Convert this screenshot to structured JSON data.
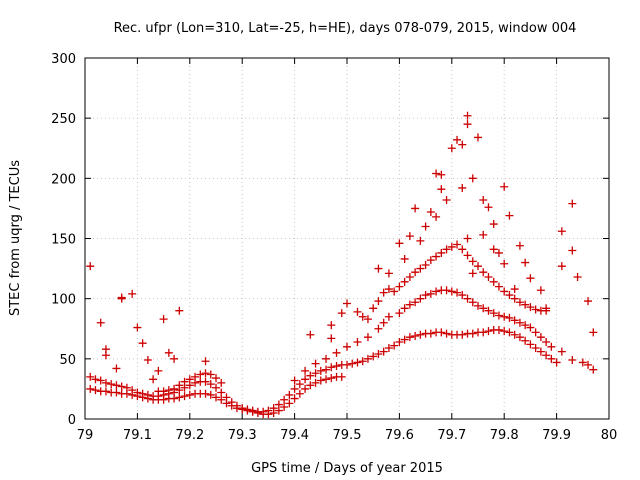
{
  "chart_data": {
    "type": "scatter",
    "title": "Rec. ufpr (Lon=310, Lat=-25, h=HE), days 078-079, 2015, window 004",
    "xlabel": "GPS time / Days of year 2015",
    "ylabel": "STEC from uqrg / TECUs",
    "xlim": [
      79,
      80
    ],
    "ylim": [
      0,
      300
    ],
    "xticks": [
      "79",
      "79.1",
      "79.2",
      "79.3",
      "79.4",
      "79.5",
      "79.6",
      "79.7",
      "79.8",
      "79.9",
      "80"
    ],
    "yticks": [
      "0",
      "50",
      "100",
      "150",
      "200",
      "250",
      "300"
    ],
    "grid": true,
    "marker": "+",
    "color": "#cc0000",
    "series": [
      {
        "points": [
          [
            79.01,
            127
          ],
          [
            79.03,
            80
          ],
          [
            79.04,
            58
          ],
          [
            79.04,
            53
          ],
          [
            79.06,
            42
          ],
          [
            79.07,
            100
          ],
          [
            79.07,
            101
          ],
          [
            79.09,
            104
          ],
          [
            79.1,
            76
          ],
          [
            79.11,
            63
          ],
          [
            79.12,
            49
          ],
          [
            79.15,
            83
          ],
          [
            79.16,
            55
          ],
          [
            79.17,
            50
          ],
          [
            79.18,
            90
          ],
          [
            79.14,
            40
          ],
          [
            79.13,
            33
          ],
          [
            79.23,
            48
          ],
          [
            79.01,
            35
          ],
          [
            79.02,
            33
          ],
          [
            79.03,
            32
          ],
          [
            79.04,
            30
          ],
          [
            79.05,
            29
          ],
          [
            79.06,
            28
          ],
          [
            79.07,
            27
          ],
          [
            79.08,
            26
          ],
          [
            79.09,
            24
          ],
          [
            79.1,
            22
          ],
          [
            79.11,
            21
          ],
          [
            79.12,
            20
          ],
          [
            79.13,
            19
          ],
          [
            79.14,
            19
          ],
          [
            79.15,
            20
          ],
          [
            79.16,
            21
          ],
          [
            79.17,
            22
          ],
          [
            79.18,
            24
          ],
          [
            79.19,
            26
          ],
          [
            79.2,
            28
          ],
          [
            79.21,
            30
          ],
          [
            79.22,
            31
          ],
          [
            79.23,
            31
          ],
          [
            79.24,
            29
          ],
          [
            79.25,
            26
          ],
          [
            79.26,
            22
          ],
          [
            79.27,
            18
          ],
          [
            79.28,
            14
          ],
          [
            79.29,
            11
          ],
          [
            79.3,
            9
          ],
          [
            79.31,
            8
          ],
          [
            79.32,
            7
          ],
          [
            79.33,
            6
          ],
          [
            79.34,
            6
          ],
          [
            79.35,
            7
          ],
          [
            79.36,
            9
          ],
          [
            79.37,
            12
          ],
          [
            79.38,
            16
          ],
          [
            79.39,
            20
          ],
          [
            79.4,
            25
          ],
          [
            79.41,
            29
          ],
          [
            79.42,
            33
          ],
          [
            79.43,
            36
          ],
          [
            79.44,
            38
          ],
          [
            79.45,
            40
          ],
          [
            79.46,
            41
          ],
          [
            79.47,
            43
          ],
          [
            79.48,
            44
          ],
          [
            79.49,
            45
          ],
          [
            79.5,
            45
          ],
          [
            79.51,
            46
          ],
          [
            79.52,
            47
          ],
          [
            79.53,
            48
          ],
          [
            79.54,
            50
          ],
          [
            79.55,
            52
          ],
          [
            79.56,
            54
          ],
          [
            79.57,
            56
          ],
          [
            79.58,
            59
          ],
          [
            79.59,
            61
          ],
          [
            79.6,
            64
          ],
          [
            79.61,
            66
          ],
          [
            79.62,
            68
          ],
          [
            79.63,
            69
          ],
          [
            79.64,
            70
          ],
          [
            79.65,
            71
          ],
          [
            79.66,
            71
          ],
          [
            79.67,
            72
          ],
          [
            79.68,
            72
          ],
          [
            79.69,
            71
          ],
          [
            79.7,
            70
          ],
          [
            79.71,
            70
          ],
          [
            79.72,
            70
          ],
          [
            79.73,
            71
          ],
          [
            79.74,
            71
          ],
          [
            79.75,
            72
          ],
          [
            79.76,
            72
          ],
          [
            79.77,
            73
          ],
          [
            79.78,
            74
          ],
          [
            79.79,
            74
          ],
          [
            79.8,
            73
          ],
          [
            79.81,
            72
          ],
          [
            79.82,
            70
          ],
          [
            79.83,
            68
          ],
          [
            79.84,
            65
          ],
          [
            79.85,
            62
          ],
          [
            79.86,
            59
          ],
          [
            79.87,
            56
          ],
          [
            79.88,
            53
          ],
          [
            79.89,
            50
          ],
          [
            79.9,
            47
          ],
          [
            79.01,
            25
          ],
          [
            79.02,
            24
          ],
          [
            79.03,
            23
          ],
          [
            79.04,
            23
          ],
          [
            79.05,
            22
          ],
          [
            79.06,
            22
          ],
          [
            79.07,
            21
          ],
          [
            79.08,
            21
          ],
          [
            79.09,
            20
          ],
          [
            79.1,
            19
          ],
          [
            79.11,
            18
          ],
          [
            79.12,
            17
          ],
          [
            79.13,
            16
          ],
          [
            79.14,
            16
          ],
          [
            79.15,
            16
          ],
          [
            79.16,
            17
          ],
          [
            79.17,
            17
          ],
          [
            79.18,
            18
          ],
          [
            79.19,
            19
          ],
          [
            79.2,
            20
          ],
          [
            79.21,
            21
          ],
          [
            79.22,
            21
          ],
          [
            79.23,
            21
          ],
          [
            79.24,
            20
          ],
          [
            79.25,
            18
          ],
          [
            79.26,
            16
          ],
          [
            79.27,
            13
          ],
          [
            79.28,
            11
          ],
          [
            79.29,
            9
          ],
          [
            79.3,
            8
          ],
          [
            79.31,
            7
          ],
          [
            79.32,
            6
          ],
          [
            79.33,
            5
          ],
          [
            79.34,
            4
          ],
          [
            79.35,
            4
          ],
          [
            79.36,
            5
          ],
          [
            79.37,
            7
          ],
          [
            79.38,
            10
          ],
          [
            79.39,
            13
          ],
          [
            79.4,
            17
          ],
          [
            79.41,
            21
          ],
          [
            79.42,
            25
          ],
          [
            79.43,
            28
          ],
          [
            79.44,
            30
          ],
          [
            79.45,
            32
          ],
          [
            79.46,
            33
          ],
          [
            79.47,
            34
          ],
          [
            79.48,
            35
          ],
          [
            79.49,
            35
          ],
          [
            79.22,
            37
          ],
          [
            79.23,
            38
          ],
          [
            79.24,
            37
          ],
          [
            79.25,
            34
          ],
          [
            79.26,
            30
          ],
          [
            79.21,
            35
          ],
          [
            79.2,
            33
          ],
          [
            79.19,
            31
          ],
          [
            79.18,
            28
          ],
          [
            79.17,
            25
          ],
          [
            79.16,
            24
          ],
          [
            79.15,
            23
          ],
          [
            79.14,
            23
          ],
          [
            79.4,
            32
          ],
          [
            79.42,
            40
          ],
          [
            79.44,
            46
          ],
          [
            79.46,
            50
          ],
          [
            79.48,
            55
          ],
          [
            79.5,
            60
          ],
          [
            79.52,
            64
          ],
          [
            79.54,
            68
          ],
          [
            79.56,
            75
          ],
          [
            79.57,
            80
          ],
          [
            79.58,
            85
          ],
          [
            79.6,
            88
          ],
          [
            79.61,
            92
          ],
          [
            79.62,
            95
          ],
          [
            79.63,
            97
          ],
          [
            79.64,
            100
          ],
          [
            79.65,
            103
          ],
          [
            79.66,
            104
          ],
          [
            79.67,
            106
          ],
          [
            79.68,
            107
          ],
          [
            79.69,
            107
          ],
          [
            79.7,
            106
          ],
          [
            79.71,
            105
          ],
          [
            79.72,
            103
          ],
          [
            79.73,
            100
          ],
          [
            79.74,
            97
          ],
          [
            79.75,
            94
          ],
          [
            79.76,
            92
          ],
          [
            79.77,
            90
          ],
          [
            79.78,
            88
          ],
          [
            79.79,
            86
          ],
          [
            79.8,
            85
          ],
          [
            79.81,
            84
          ],
          [
            79.82,
            82
          ],
          [
            79.83,
            80
          ],
          [
            79.84,
            78
          ],
          [
            79.85,
            76
          ],
          [
            79.86,
            72
          ],
          [
            79.87,
            68
          ],
          [
            79.88,
            64
          ],
          [
            79.89,
            60
          ],
          [
            79.47,
            78
          ],
          [
            79.49,
            88
          ],
          [
            79.5,
            96
          ],
          [
            79.52,
            89
          ],
          [
            79.53,
            85
          ],
          [
            79.54,
            83
          ],
          [
            79.55,
            92
          ],
          [
            79.56,
            98
          ],
          [
            79.57,
            105
          ],
          [
            79.58,
            108
          ],
          [
            79.59,
            106
          ],
          [
            79.6,
            110
          ],
          [
            79.61,
            114
          ],
          [
            79.62,
            118
          ],
          [
            79.63,
            122
          ],
          [
            79.64,
            125
          ],
          [
            79.65,
            128
          ],
          [
            79.66,
            132
          ],
          [
            79.67,
            135
          ],
          [
            79.68,
            138
          ],
          [
            79.69,
            141
          ],
          [
            79.7,
            143
          ],
          [
            79.71,
            145
          ],
          [
            79.72,
            141
          ],
          [
            79.73,
            136
          ],
          [
            79.74,
            131
          ],
          [
            79.75,
            127
          ],
          [
            79.76,
            122
          ],
          [
            79.77,
            118
          ],
          [
            79.78,
            114
          ],
          [
            79.79,
            110
          ],
          [
            79.8,
            106
          ],
          [
            79.81,
            103
          ],
          [
            79.82,
            100
          ],
          [
            79.83,
            97
          ],
          [
            79.84,
            95
          ],
          [
            79.85,
            93
          ],
          [
            79.86,
            91
          ],
          [
            79.87,
            90
          ],
          [
            79.88,
            90
          ],
          [
            79.43,
            70
          ],
          [
            79.47,
            67
          ],
          [
            79.56,
            125
          ],
          [
            79.58,
            121
          ],
          [
            79.6,
            146
          ],
          [
            79.61,
            133
          ],
          [
            79.62,
            152
          ],
          [
            79.63,
            175
          ],
          [
            79.64,
            148
          ],
          [
            79.65,
            160
          ],
          [
            79.66,
            172
          ],
          [
            79.67,
            168
          ],
          [
            79.67,
            204
          ],
          [
            79.68,
            203
          ],
          [
            79.68,
            191
          ],
          [
            79.69,
            182
          ],
          [
            79.7,
            225
          ],
          [
            79.71,
            232
          ],
          [
            79.72,
            228
          ],
          [
            79.73,
            245
          ],
          [
            79.73,
            252
          ],
          [
            79.74,
            200
          ],
          [
            79.75,
            234
          ],
          [
            79.76,
            182
          ],
          [
            79.77,
            176
          ],
          [
            79.78,
            162
          ],
          [
            79.79,
            138
          ],
          [
            79.8,
            193
          ],
          [
            79.81,
            169
          ],
          [
            79.83,
            144
          ],
          [
            79.84,
            130
          ],
          [
            79.85,
            117
          ],
          [
            79.87,
            107
          ],
          [
            79.88,
            92
          ],
          [
            79.72,
            192
          ],
          [
            79.73,
            150
          ],
          [
            79.74,
            121
          ],
          [
            79.76,
            153
          ],
          [
            79.78,
            141
          ],
          [
            79.8,
            129
          ],
          [
            79.82,
            108
          ],
          [
            79.91,
            156
          ],
          [
            79.91,
            127
          ],
          [
            79.93,
            140
          ],
          [
            79.93,
            179
          ],
          [
            79.94,
            118
          ],
          [
            79.96,
            98
          ],
          [
            79.97,
            72
          ],
          [
            79.91,
            56
          ],
          [
            79.93,
            49
          ],
          [
            79.95,
            47
          ],
          [
            79.96,
            45
          ],
          [
            79.97,
            41
          ]
        ]
      }
    ]
  }
}
